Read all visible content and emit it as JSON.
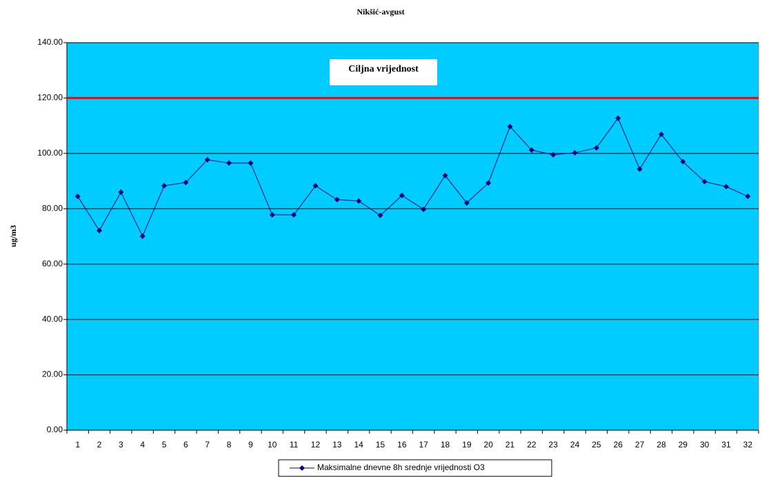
{
  "chart_data": {
    "type": "line",
    "title": "Nikšić-avgust",
    "y_label": "ug/m3",
    "categories": [
      "1",
      "2",
      "3",
      "4",
      "5",
      "6",
      "7",
      "8",
      "9",
      "10",
      "11",
      "12",
      "13",
      "14",
      "15",
      "16",
      "17",
      "18",
      "19",
      "20",
      "21",
      "22",
      "23",
      "24",
      "25",
      "26",
      "27",
      "28",
      "29",
      "30",
      "31",
      "32"
    ],
    "series": [
      {
        "name": "Maksimalne dnevne 8h srednje vrijednosti O3",
        "color": "#000080",
        "values": [
          84.5,
          72.1,
          86.0,
          70.1,
          88.3,
          89.5,
          97.7,
          96.5,
          96.5,
          77.8,
          77.8,
          88.3,
          83.3,
          82.8,
          77.6,
          84.8,
          79.8,
          92.0,
          82.1,
          89.3,
          109.7,
          101.2,
          99.5,
          100.2,
          102.0,
          112.7,
          94.3,
          106.9,
          97.0,
          89.8,
          88.0,
          84.5
        ]
      }
    ],
    "target": {
      "label": "Ciljna vrijednost",
      "value": 120,
      "color": "#ff0000"
    },
    "ylim": [
      0,
      140
    ],
    "yticks": [
      {
        "value": 0,
        "label": "0.00"
      },
      {
        "value": 20,
        "label": "20.00"
      },
      {
        "value": 40,
        "label": "40.00"
      },
      {
        "value": 60,
        "label": "60.00"
      },
      {
        "value": 80,
        "label": "80.00"
      },
      {
        "value": 100,
        "label": "100.00"
      },
      {
        "value": 120,
        "label": "120.00"
      },
      {
        "value": 140,
        "label": "140.00"
      }
    ],
    "grid": true,
    "plot_color": "#00ccff",
    "legend": "bottom"
  }
}
